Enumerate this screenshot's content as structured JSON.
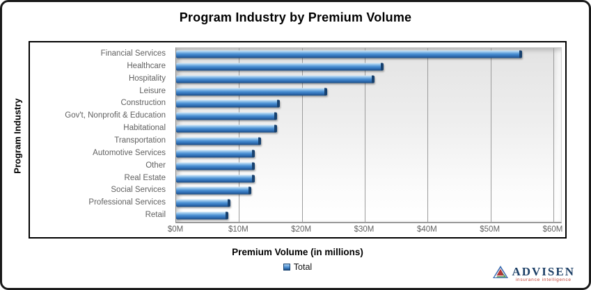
{
  "title": "Program Industry by Premium Volume",
  "chart_data": {
    "type": "bar",
    "orientation": "horizontal",
    "title": "Program Industry by Premium Volume",
    "xlabel": "Premium Volume (in millions)",
    "ylabel": "Program Industry",
    "categories": [
      "Financial Services",
      "Healthcare",
      "Hospitality",
      "Leisure",
      "Construction",
      "Gov't, Nonprofit & Education",
      "Habitational",
      "Transportation",
      "Automotive Services",
      "Other",
      "Real Estate",
      "Social Services",
      "Professional Services",
      "Retail"
    ],
    "series": [
      {
        "name": "Total",
        "values": [
          55,
          33,
          31.5,
          24,
          16.5,
          16,
          16,
          13.5,
          12.5,
          12.5,
          12.5,
          12,
          8.6,
          8.3
        ]
      }
    ],
    "xlim": [
      0,
      60
    ],
    "x_ticks": [
      "$0M",
      "$10M",
      "$20M",
      "$30M",
      "$40M",
      "$50M",
      "$60M"
    ],
    "x_tick_values": [
      0,
      10,
      20,
      30,
      40,
      50,
      60
    ],
    "grid": true,
    "legend_position": "bottom",
    "bar_color": "#4a8fd3"
  },
  "legend": {
    "items": [
      {
        "label": "Total",
        "color": "#4a8fd3"
      }
    ]
  },
  "logo": {
    "name": "ADVISEN",
    "tagline": "insurance intelligence"
  }
}
